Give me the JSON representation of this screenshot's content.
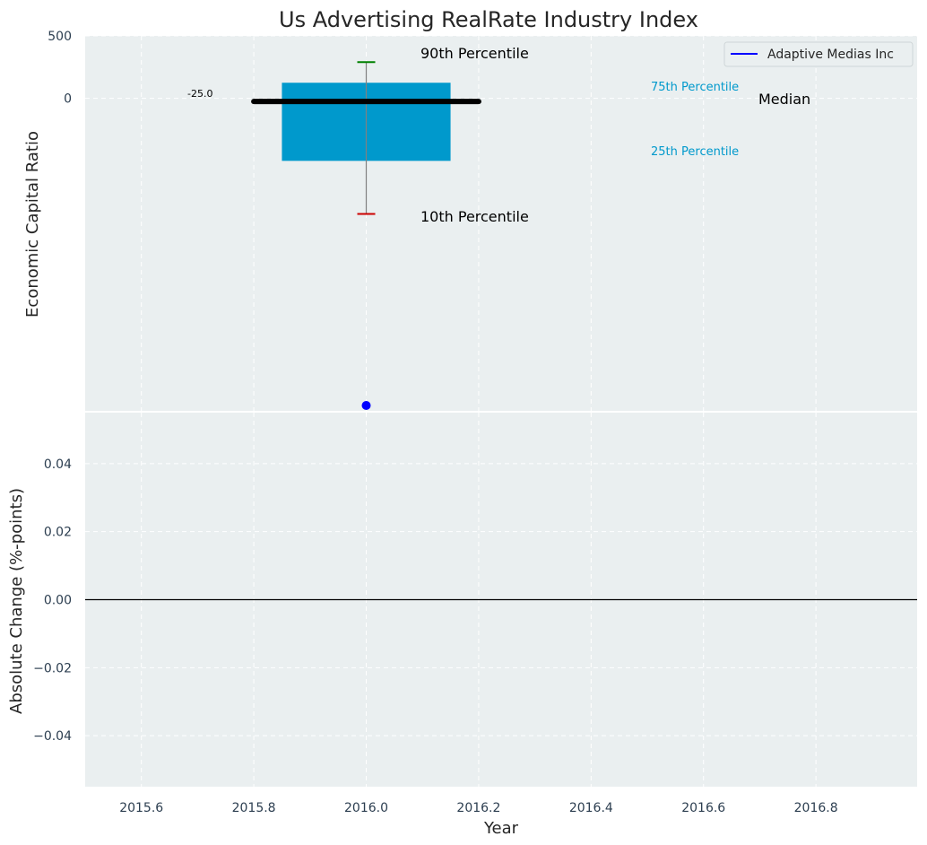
{
  "chart_data": [
    {
      "type": "box",
      "title": "Us Advertising RealRate Industry Index",
      "ylabel": "Economic Capital Ratio",
      "xlim": [
        2015.5,
        2016.98
      ],
      "ylim": [
        -2500,
        500
      ],
      "yticks": [
        500,
        0
      ],
      "box": {
        "x": 2016.0,
        "width": 0.3,
        "p10": -925,
        "p25": -500,
        "median": -25,
        "p75": 125,
        "p90": 290
      },
      "median_line": {
        "x_start": 2015.8,
        "x_end": 2016.2,
        "value": -25
      },
      "value_label": "-25.0",
      "annotations": {
        "p90": "90th Percentile",
        "p10": "10th Percentile",
        "p75": "75th Percentile",
        "p25": "25th Percentile",
        "median": "Median"
      },
      "series": [
        {
          "name": "Adaptive Medias Inc",
          "color": "#0000ff",
          "points": [
            {
              "x": 2016.0,
              "y": -2560
            }
          ]
        }
      ],
      "legend": "top-right",
      "grid": true
    },
    {
      "type": "line",
      "ylabel": "Absolute Change (%-points)",
      "xlabel": "Year",
      "xlim": [
        2015.5,
        2016.98
      ],
      "ylim": [
        -0.055,
        0.055
      ],
      "yticks": [
        -0.04,
        -0.02,
        0.0,
        0.02,
        0.04
      ],
      "ytick_labels": [
        "−0.04",
        "−0.02",
        "0.00",
        "0.02",
        "0.04"
      ],
      "xticks": [
        2015.6,
        2015.8,
        2016.0,
        2016.2,
        2016.4,
        2016.6,
        2016.8
      ],
      "xtick_labels": [
        "2015.6",
        "2015.8",
        "2016.0",
        "2016.2",
        "2016.4",
        "2016.6",
        "2016.8"
      ],
      "hline": 0.0,
      "grid": true
    }
  ],
  "colors": {
    "axes_bg": "#eaeff0",
    "box_fill": "#0099cc",
    "whisker": "#808080",
    "p90_cap": "#008000",
    "p10_cap": "#cc0000",
    "median": "#000000",
    "point": "#0000ff"
  }
}
